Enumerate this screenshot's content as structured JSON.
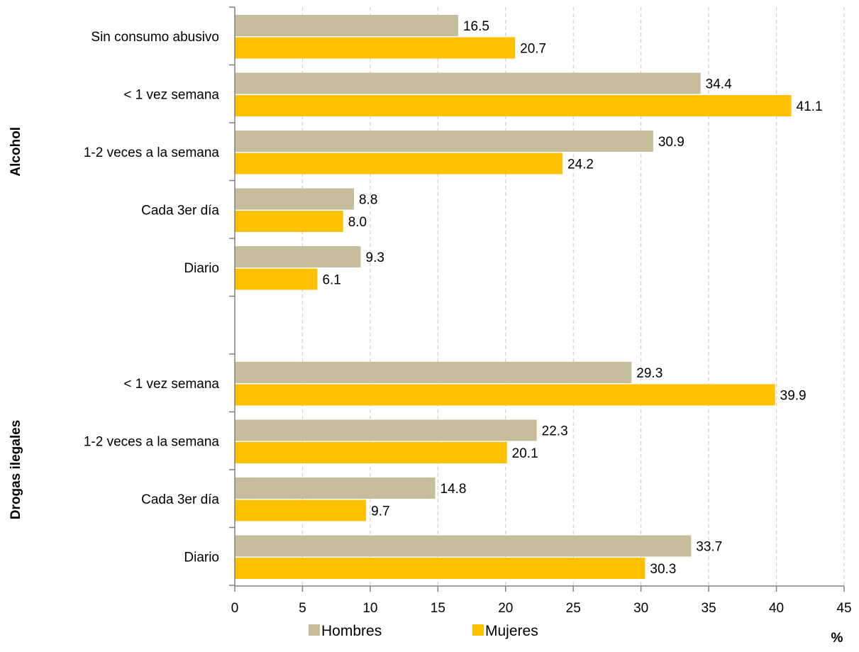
{
  "chart_data": {
    "type": "bar",
    "orientation": "horizontal",
    "groups": [
      {
        "name": "Alcohol",
        "categories": [
          "Sin consumo abusivo",
          "< 1 vez semana",
          "1-2 veces a la semana",
          "Cada 3er día",
          "Diario"
        ],
        "series": [
          {
            "name": "Hombres",
            "values": [
              16.5,
              34.4,
              30.9,
              8.8,
              9.3
            ]
          },
          {
            "name": "Mujeres",
            "values": [
              20.7,
              41.1,
              24.2,
              8.0,
              6.1
            ]
          }
        ]
      },
      {
        "name": "Drogas ilegales",
        "categories": [
          "< 1 vez semana",
          "1-2 veces a la semana",
          "Cada 3er día",
          "Diario"
        ],
        "series": [
          {
            "name": "Hombres",
            "values": [
              29.3,
              22.3,
              14.8,
              33.7
            ]
          },
          {
            "name": "Mujeres",
            "values": [
              39.9,
              20.1,
              9.7,
              30.3
            ]
          }
        ]
      }
    ],
    "xlim": [
      0,
      45
    ],
    "xticks": [
      "0",
      "5",
      "10",
      "15",
      "20",
      "25",
      "30",
      "35",
      "40",
      "45"
    ],
    "xlabel": "%",
    "grid": "vertical dashed",
    "legend": {
      "position": "bottom",
      "entries": [
        "Hombres",
        "Mujeres"
      ]
    },
    "colors": {
      "Hombres": "#c8bd9b",
      "Mujeres": "#ffc000",
      "axis": "#808080",
      "grid": "#d0d0d0"
    }
  }
}
